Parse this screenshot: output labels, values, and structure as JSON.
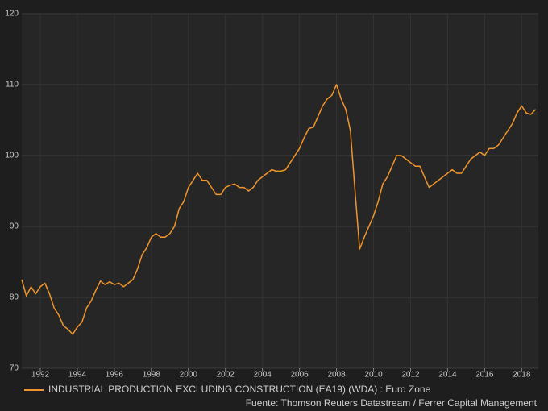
{
  "chart_data": {
    "type": "line",
    "x": [
      1991,
      1991.25,
      1991.5,
      1991.75,
      1992,
      1992.25,
      1992.5,
      1992.75,
      1993,
      1993.25,
      1993.5,
      1993.75,
      1994,
      1994.25,
      1994.5,
      1994.75,
      1995,
      1995.25,
      1995.5,
      1995.75,
      1996,
      1996.25,
      1996.5,
      1996.75,
      1997,
      1997.25,
      1997.5,
      1997.75,
      1998,
      1998.25,
      1998.5,
      1998.75,
      1999,
      1999.25,
      1999.5,
      1999.75,
      2000,
      2000.25,
      2000.5,
      2000.75,
      2001,
      2001.25,
      2001.5,
      2001.75,
      2002,
      2002.25,
      2002.5,
      2002.75,
      2003,
      2003.25,
      2003.5,
      2003.75,
      2004,
      2004.25,
      2004.5,
      2004.75,
      2005,
      2005.25,
      2005.5,
      2005.75,
      2006,
      2006.25,
      2006.5,
      2006.75,
      2007,
      2007.25,
      2007.5,
      2007.75,
      2008,
      2008.25,
      2008.5,
      2008.75,
      2009,
      2009.25,
      2009.5,
      2009.75,
      2010,
      2010.25,
      2010.5,
      2010.75,
      2011,
      2011.25,
      2011.5,
      2011.75,
      2012,
      2012.25,
      2012.5,
      2012.75,
      2013,
      2013.25,
      2013.5,
      2013.75,
      2014,
      2014.25,
      2014.5,
      2014.75,
      2015,
      2015.25,
      2015.5,
      2015.75,
      2016,
      2016.25,
      2016.5,
      2016.75,
      2017,
      2017.25,
      2017.5,
      2017.75,
      2018,
      2018.25,
      2018.5,
      2018.75
    ],
    "series": [
      {
        "name": "INDUSTRIAL PRODUCTION EXCLUDING CONSTRUCTION (EA19) (WDA) : Euro Zone",
        "color": "#f0952b",
        "values": [
          82.5,
          80.2,
          81.5,
          80.5,
          81.5,
          82.0,
          80.5,
          78.5,
          77.5,
          76.0,
          75.5,
          74.8,
          75.8,
          76.5,
          78.5,
          79.5,
          81.0,
          82.3,
          81.8,
          82.2,
          81.8,
          82.0,
          81.5,
          82.0,
          82.5,
          84.0,
          86.0,
          87.0,
          88.5,
          89.0,
          88.5,
          88.5,
          89.0,
          90.0,
          92.5,
          93.5,
          95.5,
          96.5,
          97.5,
          96.5,
          96.5,
          95.5,
          94.5,
          94.5,
          95.5,
          95.8,
          96.0,
          95.5,
          95.5,
          95.0,
          95.5,
          96.5,
          97.0,
          97.5,
          98.0,
          97.8,
          97.8,
          98.0,
          99.0,
          100.0,
          101.0,
          102.5,
          103.8,
          104.0,
          105.5,
          107.0,
          108.0,
          108.5,
          110.0,
          108.0,
          106.5,
          103.5,
          95.0,
          86.8,
          88.5,
          90.0,
          91.5,
          93.5,
          96.0,
          97.0,
          98.5,
          100.0,
          100.0,
          99.5,
          99.0,
          98.5,
          98.5,
          97.0,
          95.5,
          96.0,
          96.5,
          97.0,
          97.5,
          98.0,
          97.5,
          97.5,
          98.5,
          99.5,
          100.0,
          100.5,
          100.0,
          101.0,
          101.0,
          101.5,
          102.5,
          103.5,
          104.5,
          106.0,
          107.0,
          106.0,
          105.8,
          106.5
        ]
      }
    ],
    "xlim": [
      1991,
      2018.9
    ],
    "xticks": [
      1992,
      1994,
      1996,
      1998,
      2000,
      2002,
      2004,
      2006,
      2008,
      2010,
      2012,
      2014,
      2016,
      2018
    ],
    "ylim": [
      70,
      120
    ],
    "yticks": [
      70,
      80,
      90,
      100,
      110,
      120
    ],
    "grid": true,
    "source": "Fuente: Thomson Reuters Datastream / Ferrer Capital Management"
  }
}
